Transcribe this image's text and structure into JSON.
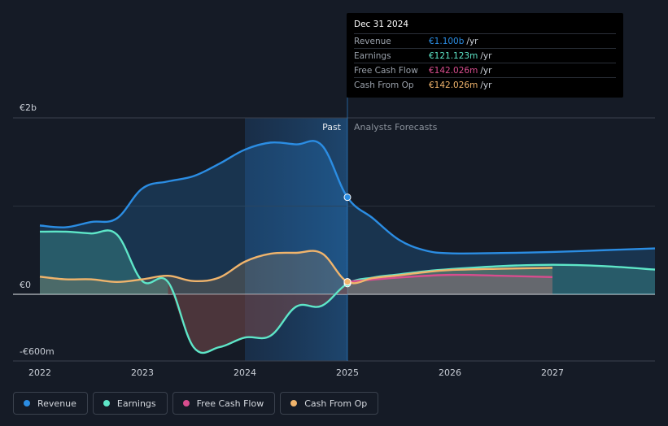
{
  "chart_data": {
    "type": "line",
    "x_ticks": [
      "2022",
      "2023",
      "2024",
      "2025",
      "2026",
      "2027"
    ],
    "x_range": [
      2021.75,
      2028.0
    ],
    "y_labels": {
      "top": "€2b",
      "zero": "€0",
      "bottom": "-€600m"
    },
    "y_range": [
      -700,
      2000
    ],
    "regions": {
      "past_label": "Past",
      "forecast_label": "Analysts Forecasts",
      "divider_x": 2025.0,
      "highlight_start": 2024.0
    },
    "series": [
      {
        "name": "Revenue",
        "color": "#2b8de3",
        "points": [
          [
            2022.0,
            780
          ],
          [
            2022.25,
            760
          ],
          [
            2022.5,
            820
          ],
          [
            2022.75,
            860
          ],
          [
            2023.0,
            1200
          ],
          [
            2023.25,
            1280
          ],
          [
            2023.5,
            1340
          ],
          [
            2023.75,
            1480
          ],
          [
            2024.0,
            1640
          ],
          [
            2024.25,
            1720
          ],
          [
            2024.5,
            1700
          ],
          [
            2024.75,
            1690
          ],
          [
            2025.0,
            1100
          ],
          [
            2025.25,
            860
          ],
          [
            2025.5,
            620
          ],
          [
            2025.75,
            500
          ],
          [
            2026.0,
            465
          ],
          [
            2026.5,
            468
          ],
          [
            2027.0,
            480
          ],
          [
            2027.5,
            500
          ],
          [
            2028.0,
            520
          ]
        ]
      },
      {
        "name": "Earnings",
        "color": "#5ee6c8",
        "points": [
          [
            2022.0,
            710
          ],
          [
            2022.25,
            710
          ],
          [
            2022.5,
            690
          ],
          [
            2022.75,
            680
          ],
          [
            2023.0,
            150
          ],
          [
            2023.25,
            140
          ],
          [
            2023.5,
            -600
          ],
          [
            2023.75,
            -600
          ],
          [
            2024.0,
            -490
          ],
          [
            2024.25,
            -470
          ],
          [
            2024.5,
            -140
          ],
          [
            2024.75,
            -130
          ],
          [
            2025.0,
            121
          ],
          [
            2025.25,
            190
          ],
          [
            2025.5,
            225
          ],
          [
            2025.75,
            260
          ],
          [
            2026.0,
            285
          ],
          [
            2026.5,
            320
          ],
          [
            2027.0,
            335
          ],
          [
            2027.5,
            320
          ],
          [
            2028.0,
            280
          ]
        ]
      },
      {
        "name": "Free Cash Flow",
        "color": "#d84d8e",
        "points": [
          [
            2025.0,
            142
          ],
          [
            2025.5,
            190
          ],
          [
            2026.0,
            220
          ],
          [
            2026.5,
            210
          ],
          [
            2027.0,
            195
          ]
        ]
      },
      {
        "name": "Cash From Op",
        "color": "#f0b46c",
        "points": [
          [
            2022.0,
            200
          ],
          [
            2022.25,
            170
          ],
          [
            2022.5,
            170
          ],
          [
            2022.75,
            140
          ],
          [
            2023.0,
            170
          ],
          [
            2023.25,
            210
          ],
          [
            2023.5,
            150
          ],
          [
            2023.75,
            190
          ],
          [
            2024.0,
            370
          ],
          [
            2024.25,
            460
          ],
          [
            2024.5,
            470
          ],
          [
            2024.75,
            465
          ],
          [
            2025.0,
            142
          ],
          [
            2025.25,
            185
          ],
          [
            2025.5,
            215
          ],
          [
            2025.75,
            250
          ],
          [
            2026.0,
            275
          ],
          [
            2026.5,
            290
          ],
          [
            2027.0,
            300
          ]
        ]
      }
    ],
    "tooltip": {
      "date": "Dec 31 2024",
      "rows": [
        {
          "label": "Revenue",
          "value": "€1.100b",
          "unit": "/yr",
          "color": "#2b8de3"
        },
        {
          "label": "Earnings",
          "value": "€121.123m",
          "unit": "/yr",
          "color": "#5ee6c8"
        },
        {
          "label": "Free Cash Flow",
          "value": "€142.026m",
          "unit": "/yr",
          "color": "#d84d8e"
        },
        {
          "label": "Cash From Op",
          "value": "€142.026m",
          "unit": "/yr",
          "color": "#f0b46c"
        }
      ]
    },
    "legend": [
      {
        "label": "Revenue",
        "color": "#2b8de3"
      },
      {
        "label": "Earnings",
        "color": "#5ee6c8"
      },
      {
        "label": "Free Cash Flow",
        "color": "#d84d8e"
      },
      {
        "label": "Cash From Op",
        "color": "#f0b46c"
      }
    ]
  }
}
